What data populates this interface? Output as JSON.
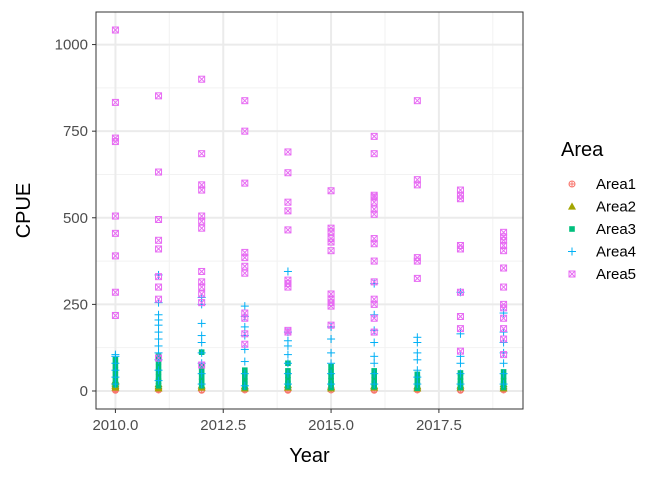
{
  "chart_data": {
    "type": "scatter",
    "title": "",
    "xlabel": "Year",
    "ylabel": "CPUE",
    "xlim": [
      2009.55,
      2019.45
    ],
    "ylim": [
      -52,
      1094
    ],
    "x_ticks": [
      2010,
      2012.5,
      2015,
      2017.5
    ],
    "x_tick_labels": [
      "2010.0",
      "2012.5",
      "2015.0",
      "2017.5"
    ],
    "y_ticks": [
      0,
      250,
      500,
      750,
      1000
    ],
    "y_tick_labels": [
      "0",
      "250",
      "500",
      "750",
      "1000"
    ],
    "grid": true,
    "legend_placement": "right",
    "legend_title": "Area",
    "series": [
      {
        "name": "Area1",
        "marker": "circle-plus",
        "color": "#F8766D",
        "points": [
          [
            2010,
            2
          ],
          [
            2010,
            5
          ],
          [
            2010,
            8
          ],
          [
            2011,
            3
          ],
          [
            2011,
            6
          ],
          [
            2012,
            2
          ],
          [
            2012,
            4
          ],
          [
            2013,
            3
          ],
          [
            2013,
            6
          ],
          [
            2014,
            2
          ],
          [
            2014,
            5
          ],
          [
            2015,
            3
          ],
          [
            2015,
            7
          ],
          [
            2016,
            2
          ],
          [
            2016,
            5
          ],
          [
            2017,
            3
          ],
          [
            2017,
            6
          ],
          [
            2018,
            2
          ],
          [
            2018,
            5
          ],
          [
            2019,
            3
          ],
          [
            2019,
            6
          ]
        ]
      },
      {
        "name": "Area2",
        "marker": "triangle",
        "color": "#A3A500",
        "points": [
          [
            2010,
            10
          ],
          [
            2010,
            15
          ],
          [
            2010,
            20
          ],
          [
            2010,
            25
          ],
          [
            2010,
            30
          ],
          [
            2011,
            8
          ],
          [
            2011,
            14
          ],
          [
            2011,
            20
          ],
          [
            2012,
            10
          ],
          [
            2012,
            16
          ],
          [
            2013,
            8
          ],
          [
            2013,
            14
          ],
          [
            2014,
            10
          ],
          [
            2014,
            18
          ],
          [
            2015,
            8
          ],
          [
            2015,
            12
          ],
          [
            2016,
            10
          ],
          [
            2016,
            15
          ],
          [
            2017,
            8
          ],
          [
            2017,
            14
          ],
          [
            2018,
            10
          ],
          [
            2018,
            16
          ],
          [
            2019,
            8
          ],
          [
            2019,
            14
          ],
          [
            2019,
            20
          ]
        ]
      },
      {
        "name": "Area3",
        "marker": "square",
        "color": "#00BF7D",
        "points": [
          [
            2010,
            18
          ],
          [
            2010,
            30
          ],
          [
            2010,
            45
          ],
          [
            2010,
            60
          ],
          [
            2010,
            75
          ],
          [
            2010,
            90
          ],
          [
            2011,
            15
          ],
          [
            2011,
            28
          ],
          [
            2011,
            40
          ],
          [
            2011,
            55
          ],
          [
            2011,
            70
          ],
          [
            2011,
            85
          ],
          [
            2011,
            100
          ],
          [
            2012,
            15
          ],
          [
            2012,
            28
          ],
          [
            2012,
            40
          ],
          [
            2012,
            55
          ],
          [
            2012,
            70
          ],
          [
            2012,
            112
          ],
          [
            2013,
            10
          ],
          [
            2013,
            20
          ],
          [
            2013,
            30
          ],
          [
            2013,
            40
          ],
          [
            2013,
            50
          ],
          [
            2013,
            60
          ],
          [
            2014,
            12
          ],
          [
            2014,
            22
          ],
          [
            2014,
            32
          ],
          [
            2014,
            45
          ],
          [
            2014,
            58
          ],
          [
            2014,
            80
          ],
          [
            2015,
            10
          ],
          [
            2015,
            20
          ],
          [
            2015,
            30
          ],
          [
            2015,
            42
          ],
          [
            2015,
            55
          ],
          [
            2015,
            70
          ],
          [
            2016,
            12
          ],
          [
            2016,
            22
          ],
          [
            2016,
            32
          ],
          [
            2016,
            45
          ],
          [
            2016,
            58
          ],
          [
            2017,
            8
          ],
          [
            2017,
            18
          ],
          [
            2017,
            28
          ],
          [
            2017,
            38
          ],
          [
            2017,
            48
          ],
          [
            2018,
            10
          ],
          [
            2018,
            20
          ],
          [
            2018,
            30
          ],
          [
            2018,
            40
          ],
          [
            2018,
            52
          ],
          [
            2019,
            10
          ],
          [
            2019,
            20
          ],
          [
            2019,
            30
          ],
          [
            2019,
            42
          ],
          [
            2019,
            55
          ]
        ]
      },
      {
        "name": "Area4",
        "marker": "plus",
        "color": "#00B0F6",
        "points": [
          [
            2010,
            20
          ],
          [
            2010,
            40
          ],
          [
            2010,
            60
          ],
          [
            2010,
            80
          ],
          [
            2010,
            100
          ],
          [
            2010,
            105
          ],
          [
            2011,
            30
          ],
          [
            2011,
            60
          ],
          [
            2011,
            90
          ],
          [
            2011,
            110
          ],
          [
            2011,
            130
          ],
          [
            2011,
            150
          ],
          [
            2011,
            170
          ],
          [
            2011,
            190
          ],
          [
            2011,
            205
          ],
          [
            2011,
            220
          ],
          [
            2011,
            255
          ],
          [
            2011,
            335
          ],
          [
            2012,
            20
          ],
          [
            2012,
            50
          ],
          [
            2012,
            80
          ],
          [
            2012,
            110
          ],
          [
            2012,
            140
          ],
          [
            2012,
            160
          ],
          [
            2012,
            195
          ],
          [
            2012,
            250
          ],
          [
            2012,
            270
          ],
          [
            2013,
            15
          ],
          [
            2013,
            50
          ],
          [
            2013,
            85
          ],
          [
            2013,
            120
          ],
          [
            2013,
            160
          ],
          [
            2013,
            185
          ],
          [
            2013,
            215
          ],
          [
            2013,
            245
          ],
          [
            2014,
            20
          ],
          [
            2014,
            50
          ],
          [
            2014,
            80
          ],
          [
            2014,
            105
          ],
          [
            2014,
            130
          ],
          [
            2014,
            145
          ],
          [
            2014,
            170
          ],
          [
            2014,
            345
          ],
          [
            2015,
            20
          ],
          [
            2015,
            50
          ],
          [
            2015,
            80
          ],
          [
            2015,
            110
          ],
          [
            2015,
            150
          ],
          [
            2015,
            185
          ],
          [
            2016,
            20
          ],
          [
            2016,
            50
          ],
          [
            2016,
            80
          ],
          [
            2016,
            100
          ],
          [
            2016,
            140
          ],
          [
            2016,
            175
          ],
          [
            2016,
            220
          ],
          [
            2016,
            310
          ],
          [
            2017,
            20
          ],
          [
            2017,
            40
          ],
          [
            2017,
            60
          ],
          [
            2017,
            90
          ],
          [
            2017,
            110
          ],
          [
            2017,
            140
          ],
          [
            2017,
            155
          ],
          [
            2018,
            20
          ],
          [
            2018,
            50
          ],
          [
            2018,
            80
          ],
          [
            2018,
            100
          ],
          [
            2018,
            165
          ],
          [
            2018,
            285
          ],
          [
            2019,
            20
          ],
          [
            2019,
            50
          ],
          [
            2019,
            80
          ],
          [
            2019,
            110
          ],
          [
            2019,
            140
          ],
          [
            2019,
            170
          ],
          [
            2019,
            225
          ]
        ]
      },
      {
        "name": "Area5",
        "marker": "square-cross",
        "color": "#E76BF3",
        "points": [
          [
            2010,
            218
          ],
          [
            2010,
            285
          ],
          [
            2010,
            390
          ],
          [
            2010,
            455
          ],
          [
            2010,
            505
          ],
          [
            2010,
            720
          ],
          [
            2010,
            730
          ],
          [
            2010,
            833
          ],
          [
            2010,
            1042
          ],
          [
            2011,
            95
          ],
          [
            2011,
            265
          ],
          [
            2011,
            300
          ],
          [
            2011,
            330
          ],
          [
            2011,
            410
          ],
          [
            2011,
            435
          ],
          [
            2011,
            495
          ],
          [
            2011,
            632
          ],
          [
            2011,
            852
          ],
          [
            2012,
            75
          ],
          [
            2012,
            255
          ],
          [
            2012,
            280
          ],
          [
            2012,
            300
          ],
          [
            2012,
            315
          ],
          [
            2012,
            345
          ],
          [
            2012,
            470
          ],
          [
            2012,
            490
          ],
          [
            2012,
            505
          ],
          [
            2012,
            580
          ],
          [
            2012,
            595
          ],
          [
            2012,
            685
          ],
          [
            2012,
            900
          ],
          [
            2013,
            135
          ],
          [
            2013,
            165
          ],
          [
            2013,
            210
          ],
          [
            2013,
            225
          ],
          [
            2013,
            340
          ],
          [
            2013,
            360
          ],
          [
            2013,
            385
          ],
          [
            2013,
            400
          ],
          [
            2013,
            600
          ],
          [
            2013,
            750
          ],
          [
            2013,
            838
          ],
          [
            2014,
            170
          ],
          [
            2014,
            175
          ],
          [
            2014,
            300
          ],
          [
            2014,
            310
          ],
          [
            2014,
            320
          ],
          [
            2014,
            465
          ],
          [
            2014,
            520
          ],
          [
            2014,
            545
          ],
          [
            2014,
            630
          ],
          [
            2014,
            690
          ],
          [
            2015,
            190
          ],
          [
            2015,
            245
          ],
          [
            2015,
            255
          ],
          [
            2015,
            265
          ],
          [
            2015,
            280
          ],
          [
            2015,
            405
          ],
          [
            2015,
            430
          ],
          [
            2015,
            440
          ],
          [
            2015,
            460
          ],
          [
            2015,
            470
          ],
          [
            2015,
            578
          ],
          [
            2016,
            170
          ],
          [
            2016,
            210
          ],
          [
            2016,
            250
          ],
          [
            2016,
            265
          ],
          [
            2016,
            315
          ],
          [
            2016,
            375
          ],
          [
            2016,
            425
          ],
          [
            2016,
            440
          ],
          [
            2016,
            510
          ],
          [
            2016,
            525
          ],
          [
            2016,
            545
          ],
          [
            2016,
            560
          ],
          [
            2016,
            565
          ],
          [
            2016,
            685
          ],
          [
            2016,
            735
          ],
          [
            2017,
            325
          ],
          [
            2017,
            375
          ],
          [
            2017,
            385
          ],
          [
            2017,
            595
          ],
          [
            2017,
            610
          ],
          [
            2017,
            838
          ],
          [
            2018,
            115
          ],
          [
            2018,
            180
          ],
          [
            2018,
            215
          ],
          [
            2018,
            285
          ],
          [
            2018,
            410
          ],
          [
            2018,
            420
          ],
          [
            2018,
            555
          ],
          [
            2018,
            565
          ],
          [
            2018,
            580
          ],
          [
            2019,
            105
          ],
          [
            2019,
            150
          ],
          [
            2019,
            180
          ],
          [
            2019,
            210
          ],
          [
            2019,
            240
          ],
          [
            2019,
            250
          ],
          [
            2019,
            300
          ],
          [
            2019,
            355
          ],
          [
            2019,
            405
          ],
          [
            2019,
            420
          ],
          [
            2019,
            435
          ],
          [
            2019,
            445
          ],
          [
            2019,
            458
          ]
        ]
      }
    ]
  }
}
